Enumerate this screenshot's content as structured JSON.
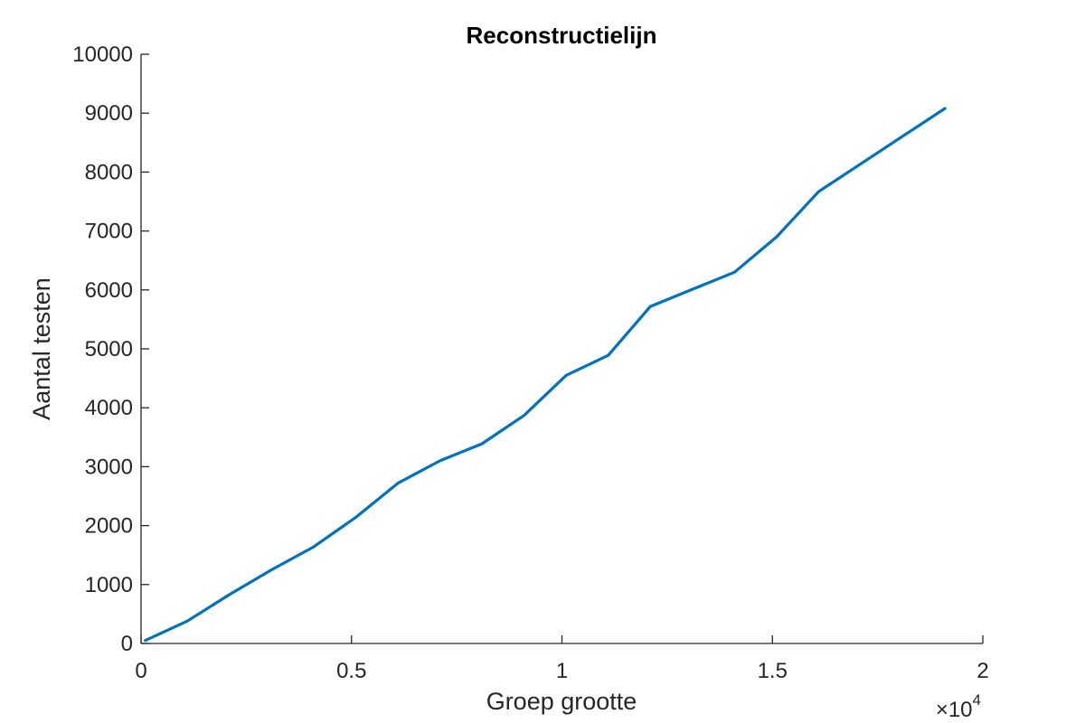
{
  "chart_data": {
    "type": "line",
    "title": "Reconstructielijn",
    "xlabel": "Groep grootte",
    "ylabel": "Aantal testen",
    "x_exponent_label": "×10",
    "x_exponent_power": "4",
    "xlim": [
      0,
      20000
    ],
    "ylim": [
      0,
      10000
    ],
    "x_tick_values": [
      0,
      5000,
      10000,
      15000,
      20000
    ],
    "x_tick_labels": [
      "0",
      "0.5",
      "1",
      "1.5",
      "2"
    ],
    "y_tick_values": [
      0,
      1000,
      2000,
      3000,
      4000,
      5000,
      6000,
      7000,
      8000,
      9000,
      10000
    ],
    "y_tick_labels": [
      "0",
      "1000",
      "2000",
      "3000",
      "4000",
      "5000",
      "6000",
      "7000",
      "8000",
      "9000",
      "10000"
    ],
    "grid": false,
    "line_color": "#0072BD",
    "series": [
      {
        "x": [
          100,
          1100,
          2100,
          3100,
          4100,
          5100,
          6100,
          7100,
          8100,
          9100,
          10100,
          11100,
          12100,
          13100,
          14100,
          15100,
          16100,
          17100,
          18100,
          19100
        ],
        "y": [
          50,
          380,
          830,
          1250,
          1640,
          2140,
          2720,
          3100,
          3390,
          3870,
          4550,
          4890,
          5720,
          6010,
          6300,
          6900,
          7670,
          8140,
          8610,
          9080
        ]
      }
    ]
  }
}
